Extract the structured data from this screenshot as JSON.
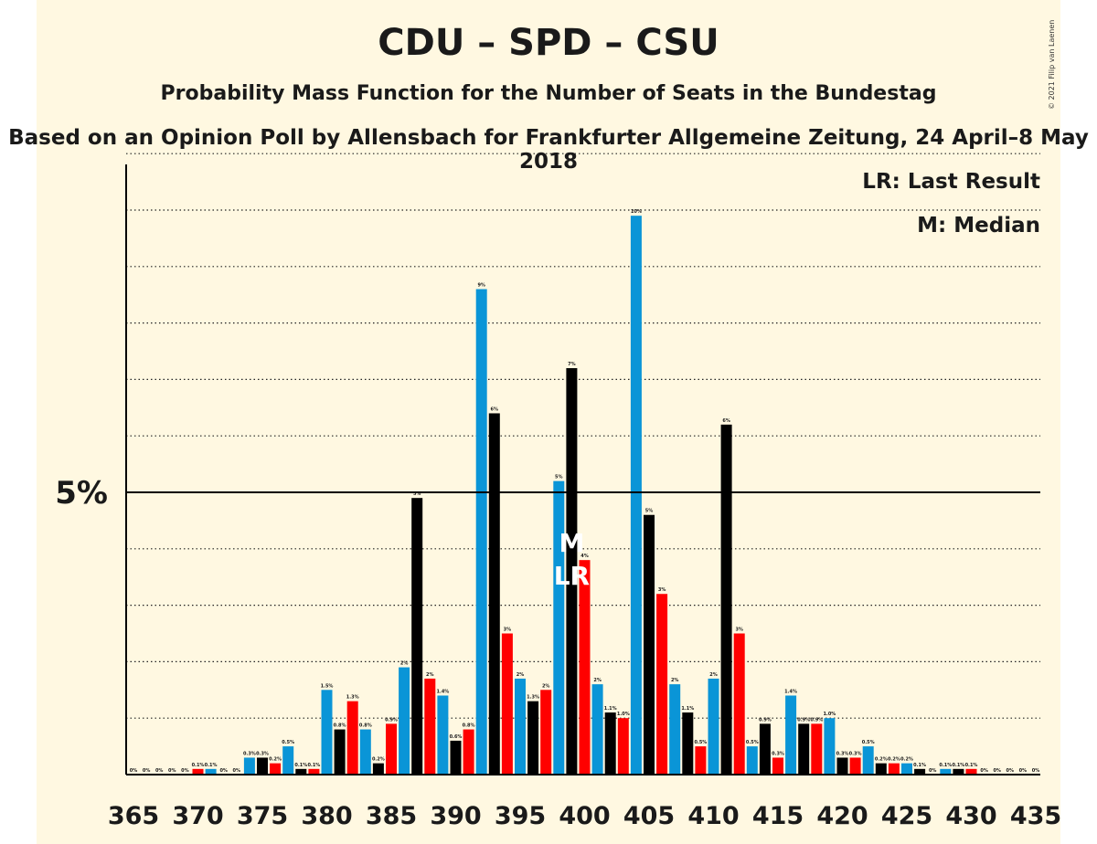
{
  "header": {
    "title": "CDU – SPD – CSU",
    "subtitle": "Probability Mass Function for the Number of Seats in the Bundestag",
    "source": "Based on an Opinion Poll by Allensbach for Frankfurter Allgemeine Zeitung, 24 April–8 May 2018",
    "copyright": "© 2021 Filip van Laenen"
  },
  "legend": {
    "lr": "LR: Last Result",
    "m": "M: Median"
  },
  "chart_data": {
    "type": "bar",
    "x_start": 365,
    "x": [
      365,
      366,
      367,
      368,
      369,
      370,
      371,
      372,
      373,
      374,
      375,
      376,
      377,
      378,
      379,
      380,
      381,
      382,
      383,
      384,
      385,
      386,
      387,
      388,
      389,
      390,
      391,
      392,
      393,
      394,
      395,
      396,
      397,
      398,
      399,
      400,
      401,
      402,
      403,
      404,
      405,
      406,
      407,
      408,
      409,
      410,
      411,
      412,
      413,
      414,
      415,
      416,
      417,
      418,
      419,
      420,
      421,
      422,
      423,
      424,
      425,
      426,
      427,
      428,
      429,
      430,
      431,
      432,
      433,
      434,
      435
    ],
    "values": [
      0,
      0,
      0,
      0,
      0,
      0.1,
      0.1,
      0,
      0,
      0.3,
      0.3,
      0.2,
      0.5,
      0.1,
      0.1,
      1.5,
      0.8,
      1.3,
      0.8,
      0.2,
      0.9,
      1.9,
      4.9,
      1.7,
      1.4,
      0.6,
      0.8,
      8.6,
      6.4,
      2.5,
      1.7,
      1.3,
      1.5,
      5.2,
      7.2,
      3.8,
      1.6,
      1.1,
      1.0,
      9.9,
      4.6,
      3.2,
      1.6,
      1.1,
      0.5,
      1.7,
      6.2,
      2.5,
      0.5,
      0.9,
      0.3,
      1.4,
      0.9,
      0.9,
      1.0,
      0.3,
      0.3,
      0.5,
      0.2,
      0.2,
      0.2,
      0.1,
      0,
      0.1,
      0.1,
      0.1,
      0,
      0,
      0,
      0,
      0
    ],
    "labels": [
      "0%",
      "0%",
      "0%",
      "0%",
      "0%",
      "0.1%",
      "0.1%",
      "0%",
      "0%",
      "0.3%",
      "0.3%",
      "0.2%",
      "0.5%",
      "0.1%",
      "0.1%",
      "1.5%",
      "0.8%",
      "1.3%",
      "0.8%",
      "0.2%",
      "0.9%",
      "2%",
      "5%",
      "2%",
      "1.4%",
      "0.6%",
      "0.8%",
      "9%",
      "6%",
      "3%",
      "2%",
      "1.3%",
      "2%",
      "5%",
      "7%",
      "4%",
      "2%",
      "1.1%",
      "1.0%",
      "10%",
      "5%",
      "3%",
      "2%",
      "1.1%",
      "0.5%",
      "2%",
      "6%",
      "3%",
      "0.5%",
      "0.9%",
      "0.3%",
      "1.4%",
      "0.9%",
      "0.9%",
      "1.0%",
      "0.3%",
      "0.3%",
      "0.5%",
      "0.2%",
      "0.2%",
      "0.2%",
      "0.1%",
      "0%",
      "0.1%",
      "0.1%",
      "0.1%",
      "0%",
      "0%",
      "0%",
      "0%",
      "0%"
    ],
    "bar_colors": [
      "#0a95d7",
      "#000000",
      "#ff0000"
    ],
    "x_ticks": [
      365,
      370,
      375,
      380,
      385,
      390,
      395,
      400,
      405,
      410,
      415,
      420,
      425,
      430,
      435
    ],
    "x_tick_labels": [
      "365",
      "370",
      "375",
      "380",
      "385",
      "390",
      "395",
      "400",
      "405",
      "410",
      "415",
      "420",
      "425",
      "430",
      "435"
    ],
    "y_reference": 5,
    "y_reference_label": "5%",
    "ylim": [
      0,
      11.5
    ],
    "grid": "dotted, every 1%",
    "median": 399,
    "median_label": "M",
    "last_result": 399,
    "last_result_label": "LR",
    "legend_position": "top-right"
  }
}
